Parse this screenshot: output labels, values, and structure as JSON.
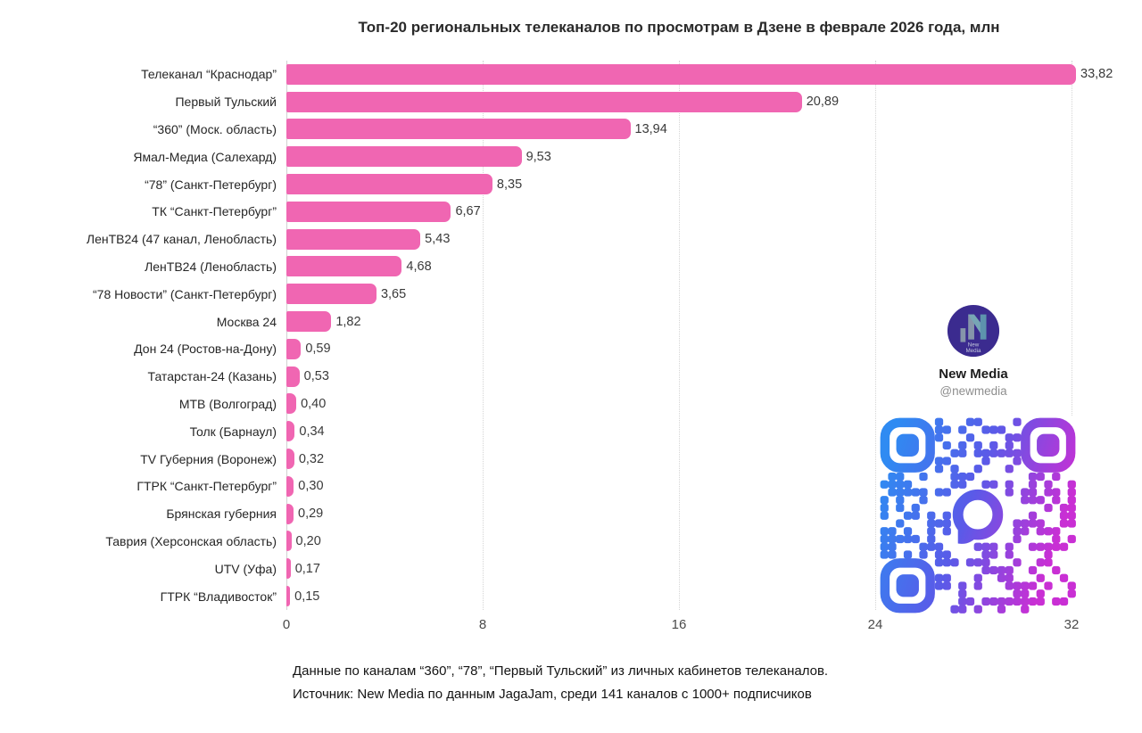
{
  "chart_data": {
    "type": "bar",
    "orientation": "horizontal",
    "title": "Топ-20 региональных телеканалов по просмотрам в Дзене в феврале 2026 года, млн",
    "categories": [
      "Телеканал “Краснодар”",
      "Первый Тульский",
      "“360” (Моск. область)",
      "Ямал-Медиа (Салехард)",
      "“78” (Санкт-Петербург)",
      "ТК “Санкт-Петербург”",
      "ЛенТВ24 (47 канал, Ленобласть)",
      "ЛенТВ24 (Ленобласть)",
      "“78 Новости” (Санкт-Петербург)",
      "Москва 24",
      "Дон 24 (Ростов-на-Дону)",
      "Татарстан-24 (Казань)",
      "МТВ (Волгоград)",
      "Толк (Барнаул)",
      "TV Губерния (Воронеж)",
      "ГТРК “Санкт-Петербург”",
      "Брянская губерния",
      "Таврия (Херсонская область)",
      "UTV (Уфа)",
      "ГТРК “Владивосток”"
    ],
    "values": [
      33.82,
      20.89,
      13.94,
      9.53,
      8.35,
      6.67,
      5.43,
      4.68,
      3.65,
      1.82,
      0.59,
      0.53,
      0.4,
      0.34,
      0.32,
      0.3,
      0.29,
      0.2,
      0.17,
      0.15
    ],
    "value_labels": [
      "33,82",
      "20,89",
      "13,94",
      "9,53",
      "8,35",
      "6,67",
      "5,43",
      "4,68",
      "3,65",
      "1,82",
      "0,59",
      "0,53",
      "0,40",
      "0,34",
      "0,32",
      "0,30",
      "0,29",
      "0,20",
      "0,17",
      "0,15"
    ],
    "xlim": [
      0,
      32
    ],
    "x_ticks": [
      0,
      8,
      16,
      24,
      32
    ],
    "bar_color": "#f066b2",
    "grid": "vertical-dotted",
    "legend": "none"
  },
  "branding": {
    "name": "New Media",
    "handle": "@newmedia",
    "avatar_text_line1": "New",
    "avatar_text_line2": "Media",
    "avatar_bg_color": "#3b2b8f",
    "qr_gradient": {
      "start": "#2f8bf2",
      "mid": "#5a5ae8",
      "end": "#c92fd4"
    }
  },
  "footer": {
    "line1": "Данные по каналам “360”, “78”, “Первый Тульский” из личных кабинетов телеканалов.",
    "line2": "Источник: New Media по данным JagaJam, среди 141 каналов с 1000+ подписчиков"
  }
}
